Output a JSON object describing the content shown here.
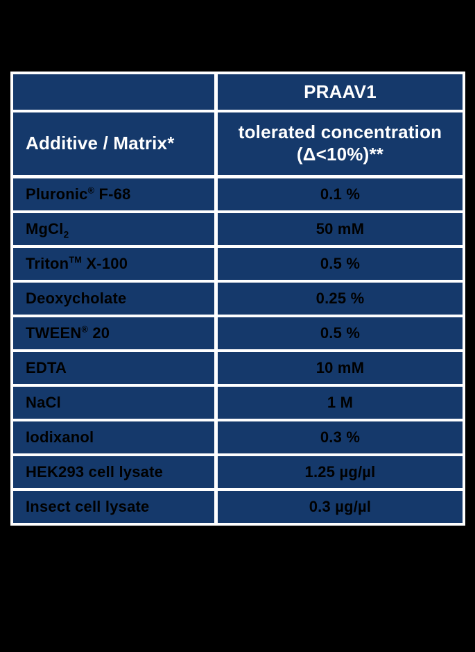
{
  "page": {
    "background_color": "#000000"
  },
  "table": {
    "cell_color": "#15396b",
    "grid_color": "#ffffff",
    "header_text_color": "#ffffff",
    "data_text_color": "#000000",
    "header": {
      "corner_blank": "",
      "product": "PRAAV1",
      "row_label": "Additive / Matrix*",
      "value_label_line1": "tolerated concentration",
      "value_label_line2": "(Δ<10%)**"
    },
    "rows": [
      {
        "additive": "Pluronic® F-68",
        "value": "0.1 %"
      },
      {
        "additive": "MgCl₂",
        "value": "50 mM"
      },
      {
        "additive": "Triton™ X-100",
        "value": "0.5 %"
      },
      {
        "additive": "Deoxycholate",
        "value": "0.25 %"
      },
      {
        "additive": "TWEEN® 20",
        "value": "0.5 %"
      },
      {
        "additive": "EDTA",
        "value": "10 mM"
      },
      {
        "additive": "NaCl",
        "value": "1 M"
      },
      {
        "additive": "Iodixanol",
        "value": "0.3 %"
      },
      {
        "additive": "HEK293 cell lysate",
        "value": "1.25 µg/µl"
      },
      {
        "additive": "Insect cell lysate",
        "value": "0.3 µg/µl"
      }
    ]
  },
  "chart_data": {
    "type": "table",
    "title": "PRAAV1 tolerated concentrations",
    "columns": [
      "Additive / Matrix*",
      "PRAAV1 tolerated concentration (Δ<10%)**"
    ],
    "rows": [
      [
        "Pluronic® F-68",
        "0.1 %"
      ],
      [
        "MgCl₂",
        "50 mM"
      ],
      [
        "Triton™ X-100",
        "0.5 %"
      ],
      [
        "Deoxycholate",
        "0.25 %"
      ],
      [
        "TWEEN® 20",
        "0.5 %"
      ],
      [
        "EDTA",
        "10 mM"
      ],
      [
        "NaCl",
        "1 M"
      ],
      [
        "Iodixanol",
        "0.3 %"
      ],
      [
        "HEK293 cell lysate",
        "1.25 µg/µl"
      ],
      [
        "Insect cell lysate",
        "0.3 µg/µl"
      ]
    ]
  }
}
